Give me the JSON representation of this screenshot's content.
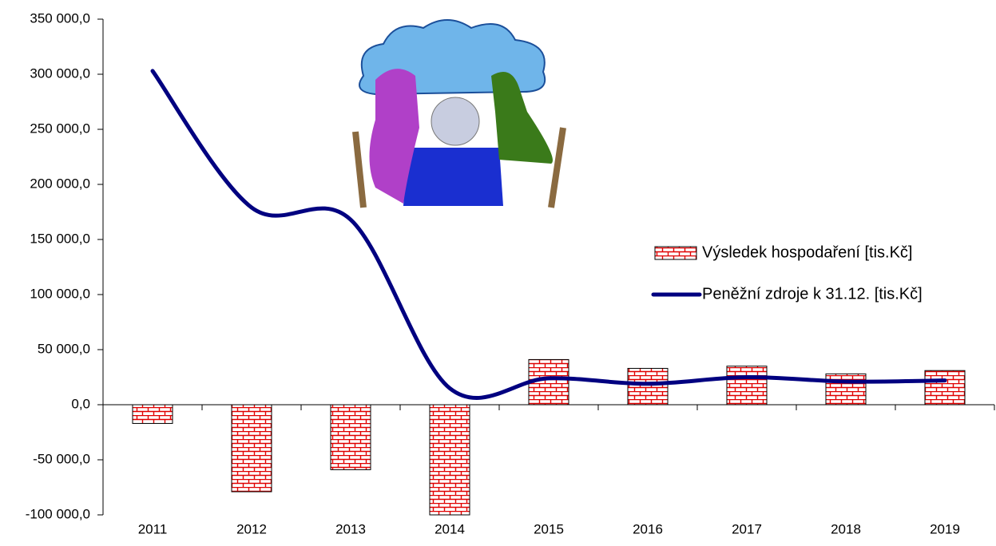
{
  "chart_data": {
    "type": "bar_line",
    "categories": [
      "2011",
      "2012",
      "2013",
      "2014",
      "2015",
      "2016",
      "2017",
      "2018",
      "2019"
    ],
    "series": [
      {
        "name": "Výsledek hospodaření [tis.Kč]",
        "type": "bar",
        "color": "#e00000",
        "values": [
          -17000,
          -79000,
          -59000,
          -100000,
          41000,
          33000,
          35000,
          28000,
          31000
        ]
      },
      {
        "name": "Peněžní zdroje k 31.12. [tis.Kč]",
        "type": "line",
        "color": "#000080",
        "values": [
          303000,
          179000,
          168000,
          15000,
          24000,
          19000,
          25000,
          21000,
          22000
        ]
      }
    ],
    "ylim": [
      -100000,
      350000
    ],
    "yticks": [
      {
        "value": -100000,
        "label": "-100 000,0"
      },
      {
        "value": -50000,
        "label": "-50 000,0"
      },
      {
        "value": 0,
        "label": "0,0"
      },
      {
        "value": 50000,
        "label": "50 000,0"
      },
      {
        "value": 100000,
        "label": "100 000,0"
      },
      {
        "value": 150000,
        "label": "150 000,0"
      },
      {
        "value": 200000,
        "label": "200 000,0"
      },
      {
        "value": 250000,
        "label": "250 000,0"
      },
      {
        "value": 300000,
        "label": "300 000,0"
      },
      {
        "value": 350000,
        "label": "350 000,0"
      }
    ],
    "grid": false,
    "legend": "right"
  }
}
